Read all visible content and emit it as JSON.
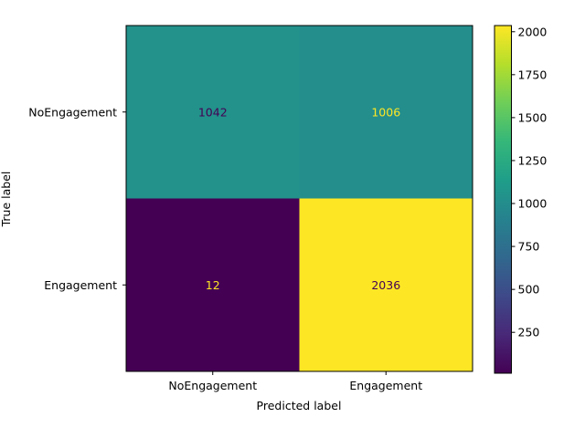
{
  "chart_data": {
    "type": "heatmap",
    "title": "",
    "xlabel": "Predicted label",
    "ylabel": "True label",
    "x_categories": [
      "NoEngagement",
      "Engagement"
    ],
    "y_categories": [
      "NoEngagement",
      "Engagement"
    ],
    "values": [
      [
        1042,
        1006
      ],
      [
        12,
        2036
      ]
    ],
    "colormap": "viridis",
    "colorbar": {
      "range": [
        12,
        2036
      ],
      "ticks": [
        "250",
        "500",
        "750",
        "1000",
        "1250",
        "1500",
        "1750",
        "2000"
      ]
    },
    "grid": false
  }
}
